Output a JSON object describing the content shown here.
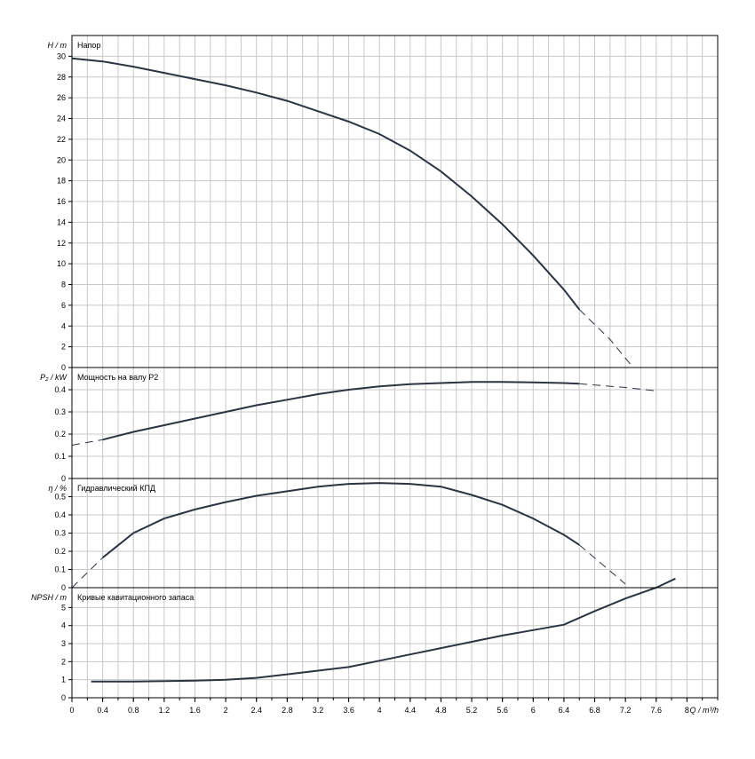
{
  "colors": {
    "grid": "#c8c8c8",
    "frame": "#000000",
    "curve": "#2b3440",
    "background": "#ffffff"
  },
  "x_axis": {
    "label": "Q / m³/h",
    "range": [
      0,
      8.4
    ],
    "ticks": [
      "0",
      "0.4",
      "0.8",
      "1.2",
      "1.6",
      "2",
      "2.4",
      "2.8",
      "3.2",
      "3.6",
      "4",
      "4.4",
      "4.8",
      "5.2",
      "5.6",
      "6",
      "6.4",
      "6.8",
      "7.2",
      "7.6",
      "8"
    ]
  },
  "chart_data": [
    {
      "type": "line",
      "title": "Напор",
      "ylabel": "H / m",
      "ylim": [
        0,
        32
      ],
      "yticks": [
        "0",
        "2",
        "4",
        "6",
        "8",
        "10",
        "12",
        "14",
        "16",
        "18",
        "20",
        "22",
        "24",
        "26",
        "28",
        "30"
      ],
      "grid": true,
      "series": [
        {
          "style": "solid",
          "x": [
            0,
            0.4,
            0.8,
            1.2,
            1.6,
            2.0,
            2.4,
            2.8,
            3.2,
            3.6,
            4.0,
            4.4,
            4.8,
            5.2,
            5.6,
            6.0,
            6.4,
            6.6
          ],
          "y": [
            29.8,
            29.5,
            29.0,
            28.4,
            27.8,
            27.2,
            26.5,
            25.7,
            24.7,
            23.7,
            22.5,
            20.9,
            18.9,
            16.5,
            13.8,
            10.8,
            7.5,
            5.6
          ]
        },
        {
          "style": "dashed",
          "x": [
            6.6,
            7.0,
            7.3
          ],
          "y": [
            5.6,
            2.7,
            0
          ]
        }
      ]
    },
    {
      "type": "line",
      "title": "Мощность на валу P2",
      "ylabel": "P₂ / kW",
      "ylim": [
        0,
        0.5
      ],
      "yticks": [
        "0",
        "0.1",
        "0.2",
        "0.3",
        "0.4"
      ],
      "grid": true,
      "series": [
        {
          "style": "dashed",
          "x": [
            0,
            0.4
          ],
          "y": [
            0.15,
            0.175
          ]
        },
        {
          "style": "solid",
          "x": [
            0.4,
            0.8,
            1.2,
            1.6,
            2.0,
            2.4,
            2.8,
            3.2,
            3.6,
            4.0,
            4.4,
            4.8,
            5.2,
            5.6,
            6.0,
            6.4,
            6.6
          ],
          "y": [
            0.175,
            0.21,
            0.24,
            0.27,
            0.3,
            0.33,
            0.355,
            0.38,
            0.4,
            0.415,
            0.425,
            0.43,
            0.435,
            0.435,
            0.433,
            0.43,
            0.427
          ]
        },
        {
          "style": "dashed",
          "x": [
            6.6,
            7.2,
            7.6
          ],
          "y": [
            0.427,
            0.41,
            0.395
          ]
        }
      ]
    },
    {
      "type": "line",
      "title": "Гидравлический КПД",
      "ylabel": "η / %",
      "ylim": [
        0,
        0.6
      ],
      "yticks": [
        "0",
        "0.1",
        "0.2",
        "0.3",
        "0.4",
        "0.5"
      ],
      "grid": true,
      "series": [
        {
          "style": "dashed",
          "x": [
            0,
            0.4
          ],
          "y": [
            0,
            0.165
          ]
        },
        {
          "style": "solid",
          "x": [
            0.4,
            0.8,
            1.2,
            1.6,
            2.0,
            2.4,
            2.8,
            3.2,
            3.6,
            4.0,
            4.4,
            4.8,
            5.2,
            5.6,
            6.0,
            6.4,
            6.6
          ],
          "y": [
            0.165,
            0.3,
            0.38,
            0.43,
            0.47,
            0.505,
            0.53,
            0.555,
            0.57,
            0.575,
            0.57,
            0.555,
            0.51,
            0.455,
            0.38,
            0.29,
            0.235
          ]
        },
        {
          "style": "dashed",
          "x": [
            6.6,
            7.2
          ],
          "y": [
            0.235,
            0.02
          ]
        }
      ]
    },
    {
      "type": "line",
      "title": "Кривые кавитационного запаса",
      "ylabel": "NPSH / m",
      "ylim": [
        0,
        6.1
      ],
      "yticks": [
        "0",
        "1",
        "2",
        "3",
        "4",
        "5"
      ],
      "grid": true,
      "series": [
        {
          "style": "solid",
          "x": [
            0.25,
            0.8,
            1.2,
            1.6,
            2.0,
            2.4,
            2.8,
            3.2,
            3.6,
            4.0,
            4.4,
            4.8,
            5.2,
            5.6,
            6.0,
            6.4,
            6.8,
            7.2,
            7.6,
            7.85
          ],
          "y": [
            0.9,
            0.9,
            0.92,
            0.95,
            1.0,
            1.1,
            1.3,
            1.5,
            1.7,
            2.05,
            2.4,
            2.75,
            3.1,
            3.45,
            3.75,
            4.05,
            4.8,
            5.5,
            6.1,
            6.6
          ]
        }
      ]
    }
  ]
}
